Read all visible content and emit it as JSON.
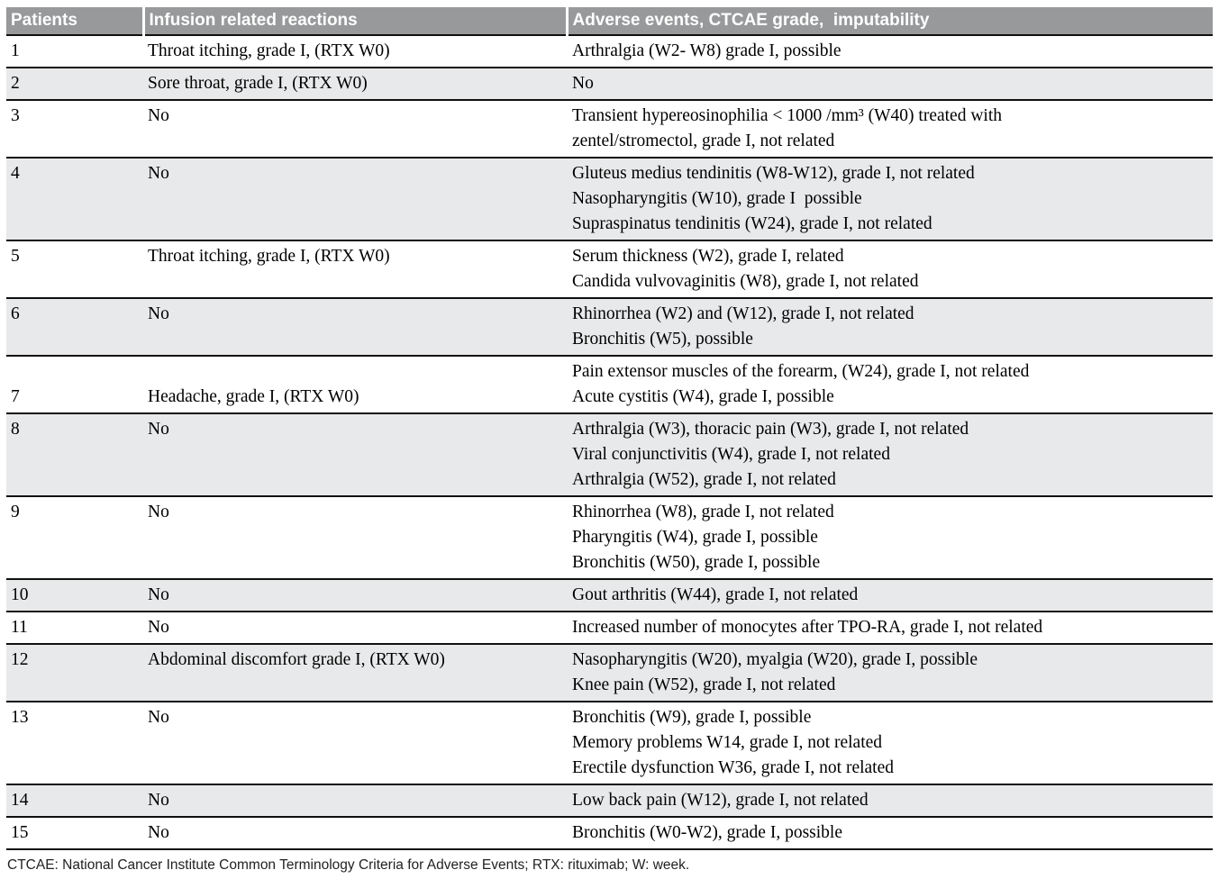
{
  "page": {
    "footnote": "CTCAE: National Cancer Institute Common Terminology Criteria for Adverse Events; RTX: rituximab; W: week."
  },
  "table": {
    "columns": [
      {
        "label": "Patients"
      },
      {
        "label": "Infusion related reactions"
      },
      {
        "label": "Adverse events, CTCAE grade,  imputability"
      }
    ],
    "rows": [
      {
        "patient": "1",
        "infusion": "Throat itching, grade I, (RTX W0)",
        "adverse_events": [
          "Arthralgia (W2- W8) grade I, possible"
        ]
      },
      {
        "patient": "2",
        "infusion": "Sore throat, grade I, (RTX W0)",
        "adverse_events": [
          "No"
        ]
      },
      {
        "patient": "3",
        "infusion": "No",
        "adverse_events": [
          "Transient hypereosinophilia < 1000 /mm³ (W40) treated with",
          "zentel/stromectol, grade I, not related"
        ]
      },
      {
        "patient": "4",
        "infusion": "No",
        "adverse_events": [
          "Gluteus medius tendinitis (W8-W12), grade I, not related",
          "Nasopharyngitis (W10), grade I  possible",
          "Supraspinatus tendinitis (W24), grade I, not related"
        ]
      },
      {
        "patient": "5",
        "infusion": "Throat itching, grade I, (RTX W0)",
        "adverse_events": [
          "Serum thickness (W2), grade I, related",
          "Candida vulvovaginitis (W8), grade I, not related"
        ]
      },
      {
        "patient": "6",
        "infusion": "No",
        "adverse_events": [
          "Rhinorrhea (W2) and (W12), grade I, not related",
          "Bronchitis (W5), possible"
        ]
      },
      {
        "patient": "7",
        "infusion": "Headache, grade I, (RTX W0)",
        "adverse_events": [
          "Pain extensor muscles of the forearm, (W24), grade I, not related",
          "Acute cystitis (W4), grade I, possible"
        ]
      },
      {
        "patient": "8",
        "infusion": "No",
        "adverse_events": [
          "Arthralgia (W3), thoracic pain (W3), grade I, not related",
          "Viral conjunctivitis (W4), grade I, not related",
          "Arthralgia (W52), grade I, not related"
        ]
      },
      {
        "patient": "9",
        "infusion": "No",
        "adverse_events": [
          "Rhinorrhea (W8), grade I, not related",
          "Pharyngitis (W4), grade I, possible",
          "Bronchitis (W50), grade I, possible"
        ]
      },
      {
        "patient": "10",
        "infusion": "No",
        "adverse_events": [
          "Gout arthritis (W44), grade I, not related"
        ]
      },
      {
        "patient": "11",
        "infusion": "No",
        "adverse_events": [
          "Increased number of monocytes after TPO-RA, grade I, not related"
        ]
      },
      {
        "patient": "12",
        "infusion": "Abdominal discomfort grade I, (RTX W0)",
        "adverse_events": [
          "Nasopharyngitis (W20), myalgia (W20), grade I, possible",
          "Knee pain (W52), grade I, not related"
        ]
      },
      {
        "patient": "13",
        "infusion": "No",
        "adverse_events": [
          "Bronchitis (W9), grade I, possible",
          "Memory problems W14, grade I, not related",
          "Erectile dysfunction W36, grade I, not related"
        ]
      },
      {
        "patient": "14",
        "infusion": "No",
        "adverse_events": [
          "Low back pain (W12), grade I, not related"
        ]
      },
      {
        "patient": "15",
        "infusion": "No",
        "adverse_events": [
          "Bronchitis (W0-W2), grade I, possible"
        ]
      }
    ]
  },
  "colors": {
    "header_bg": "#97999b",
    "header_text": "#ffffff",
    "alt_row_bg": "#e8e9ea",
    "row_divider": "#101010",
    "body_text": "#000000",
    "footnote_text": "#222222"
  }
}
